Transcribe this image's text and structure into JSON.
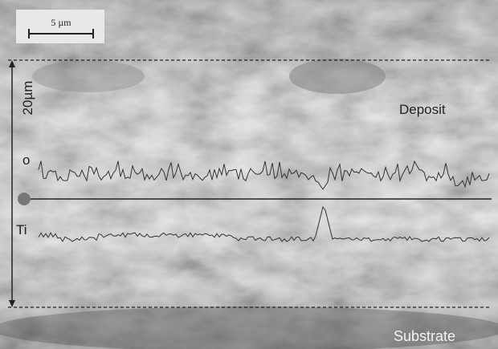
{
  "scale_bar": {
    "label": "5 µm"
  },
  "thickness": {
    "label": "20µm"
  },
  "regions": {
    "deposit": "Deposit",
    "substrate": "Substrate"
  },
  "traces": {
    "oxygen": "o",
    "titanium": "Ti"
  }
}
